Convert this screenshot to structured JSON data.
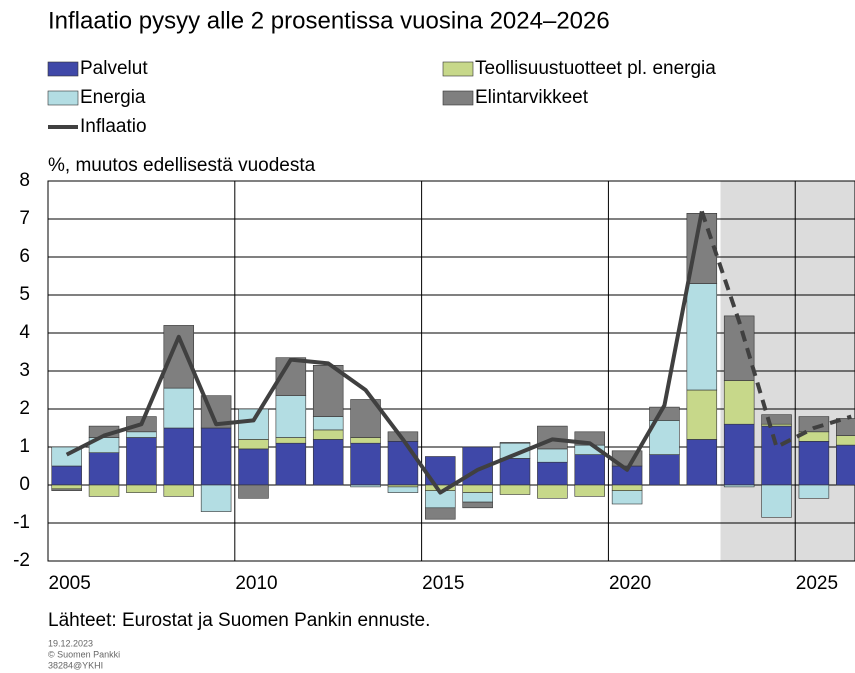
{
  "chart_data": {
    "type": "bar",
    "stacked": true,
    "title": "Inflaatio pysyy alle 2 prosentissa vuosina 2024–2026",
    "y_label": "%, muutos edellisestä vuodesta",
    "source": "Lähteet: Eurostat ja Suomen Pankin ennuste.",
    "footnotes": [
      "19.12.2023",
      "© Suomen Pankki",
      "38284@YKHI"
    ],
    "x": [
      2005,
      2006,
      2007,
      2008,
      2009,
      2010,
      2011,
      2012,
      2013,
      2014,
      2015,
      2016,
      2017,
      2018,
      2019,
      2020,
      2021,
      2022,
      2023,
      2024,
      2025,
      2026
    ],
    "xlim": [
      2005,
      2026.6
    ],
    "xticks": [
      2005,
      2010,
      2015,
      2020,
      2025
    ],
    "ylim": [
      -2,
      8
    ],
    "yticks": [
      -2,
      -1,
      0,
      1,
      2,
      3,
      4,
      5,
      6,
      7,
      8
    ],
    "grid": true,
    "forecast_start": 2023,
    "forecast_color": "#dcdcdc",
    "series": [
      {
        "name": "Palvelut",
        "type": "bar",
        "color": "#3f48a8",
        "values": [
          0.5,
          0.85,
          1.25,
          1.5,
          1.5,
          0.95,
          1.1,
          1.2,
          1.1,
          1.15,
          0.75,
          1.0,
          0.7,
          0.6,
          0.8,
          0.5,
          0.8,
          1.2,
          1.6,
          1.55,
          1.15,
          1.05
        ]
      },
      {
        "name": "Teollisuustuotteet pl. energia",
        "type": "bar",
        "color": "#c7d88a",
        "values": [
          -0.1,
          -0.3,
          -0.2,
          -0.3,
          0,
          0.25,
          0.15,
          0.25,
          0.15,
          -0.05,
          -0.15,
          -0.2,
          -0.25,
          -0.35,
          -0.3,
          -0.15,
          0,
          1.3,
          1.15,
          0.05,
          0.25,
          0.25
        ]
      },
      {
        "name": "Energia",
        "type": "bar",
        "color": "#b3dde3",
        "values": [
          0.5,
          0.4,
          0.15,
          1.05,
          -0.7,
          0.8,
          1.1,
          0.35,
          -0.05,
          -0.15,
          -0.45,
          -0.25,
          0.4,
          0.35,
          0.25,
          -0.35,
          0.9,
          2.8,
          -0.05,
          -0.85,
          -0.35,
          0
        ]
      },
      {
        "name": "Elintarvikkeet",
        "type": "bar",
        "color": "#7f7f7f",
        "values": [
          -0.05,
          0.3,
          0.4,
          1.65,
          0.85,
          -0.35,
          1.0,
          1.35,
          1.0,
          0.25,
          -0.3,
          -0.15,
          0.02,
          0.6,
          0.35,
          0.4,
          0.35,
          1.85,
          1.7,
          0.25,
          0.4,
          0.45
        ]
      },
      {
        "name": "Inflaatio",
        "type": "line",
        "color": "#404040",
        "values": [
          0.8,
          1.3,
          1.6,
          3.9,
          1.6,
          1.7,
          3.3,
          3.2,
          2.5,
          1.2,
          -0.2,
          0.4,
          0.8,
          1.2,
          1.1,
          0.4,
          2.1,
          7.2,
          4.3,
          1.0,
          1.5,
          1.8
        ]
      }
    ]
  }
}
